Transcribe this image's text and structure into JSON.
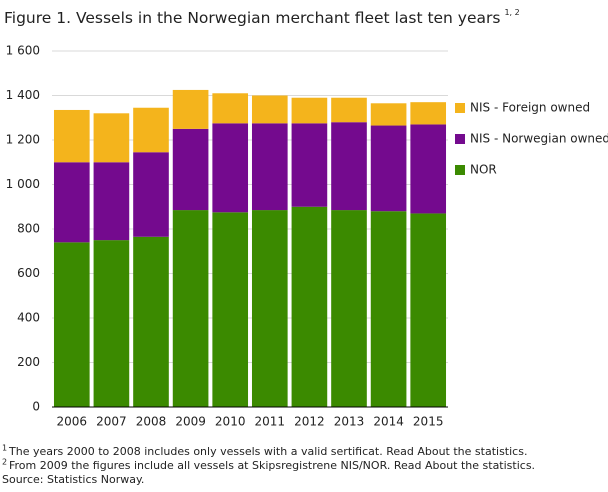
{
  "chart_data": {
    "type": "bar",
    "stacked": true,
    "title": "Figure 1. Vessels in the Norwegian merchant fleet last ten years",
    "title_note": "1, 2",
    "categories": [
      "2006",
      "2007",
      "2008",
      "2009",
      "2010",
      "2011",
      "2012",
      "2013",
      "2014",
      "2015"
    ],
    "series": [
      {
        "name": "NOR",
        "color": "#3b8a00",
        "values": [
          740,
          750,
          765,
          885,
          875,
          885,
          900,
          885,
          880,
          870
        ]
      },
      {
        "name": "NIS - Norwegian owned",
        "color": "#740a8e",
        "values": [
          360,
          350,
          380,
          365,
          400,
          390,
          375,
          395,
          385,
          400
        ]
      },
      {
        "name": "NIS - Foreign owned",
        "color": "#f4b41c",
        "values": [
          235,
          220,
          200,
          175,
          135,
          125,
          115,
          110,
          100,
          100
        ]
      }
    ],
    "ylim": [
      0,
      1600
    ],
    "yticks": [
      0,
      200,
      400,
      600,
      800,
      {
        "value": 1000,
        "label": "1 000"
      },
      {
        "value": 1200,
        "label": "1 200"
      },
      {
        "value": 1400,
        "label": "1 400"
      },
      {
        "value": 1600,
        "label": "1 600"
      }
    ],
    "grid": true,
    "legend": "right",
    "footnotes": [
      {
        "marker": "1",
        "text": "The years 2000 to 2008 includes only vessels with a valid sertificat. Read About the statistics."
      },
      {
        "marker": "2",
        "text": "From 2009 the figures include all vessels at Skipsregistrene NIS/NOR. Read About the statistics."
      }
    ],
    "source": "Source: Statistics Norway."
  }
}
